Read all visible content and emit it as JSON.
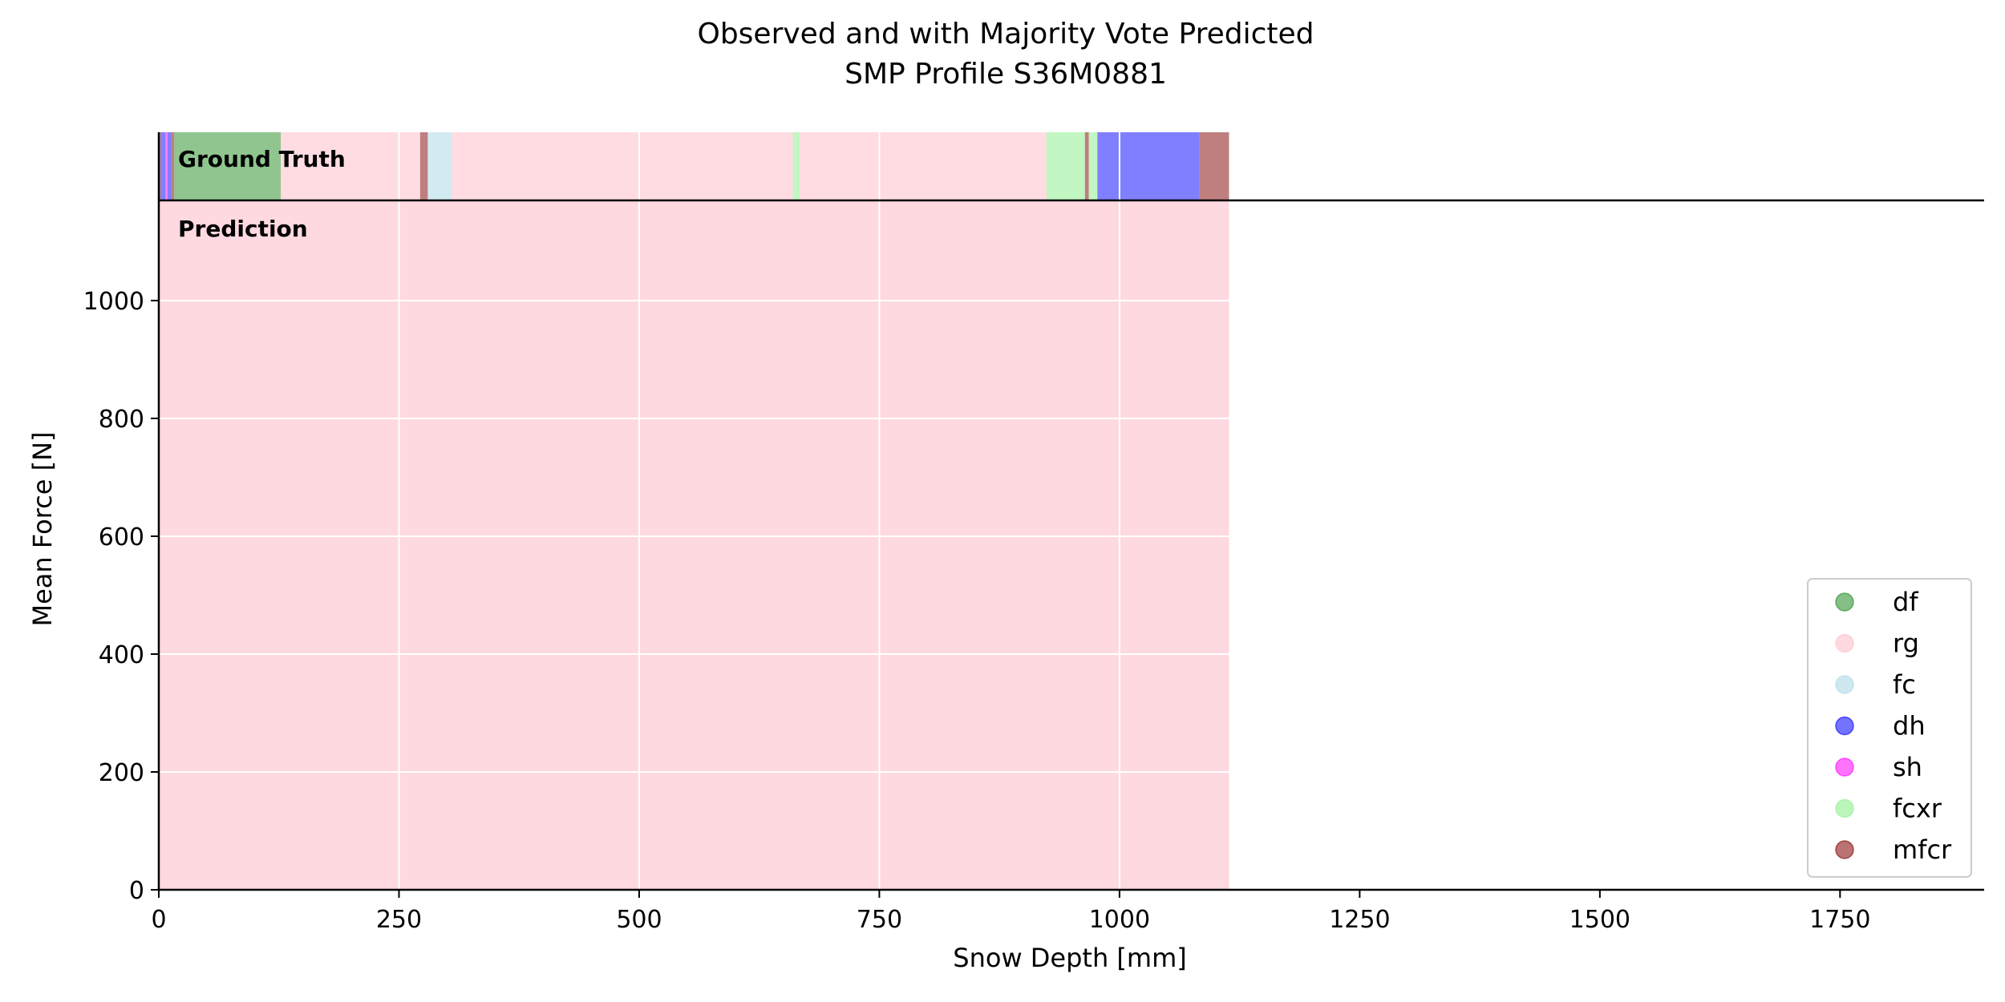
{
  "colors": {
    "df": "#228B22",
    "rg": "#FFC0CB",
    "fc": "#ADD8E6",
    "dh": "#0000FF",
    "sh": "#FF00FF",
    "fcxr": "#90EE90",
    "mfcr": "#800000",
    "grid": "#ffffff",
    "axis": "#000000"
  },
  "chart_data": {
    "type": "area",
    "title": "Observed and with Majority Vote Predicted\nSMP Profile S36M0881",
    "xlabel": "Snow Depth [mm]",
    "ylabel": "Mean Force [N]",
    "xlim": [
      0,
      1900
    ],
    "ylim": [
      0,
      1170
    ],
    "xticks": [
      0,
      250,
      500,
      750,
      1000,
      1250,
      1500,
      1750
    ],
    "yticks": [
      0,
      200,
      400,
      600,
      800,
      1000
    ],
    "grid": true,
    "legend": {
      "position": "lower right",
      "entries": [
        "df",
        "rg",
        "fc",
        "dh",
        "sh",
        "fcxr",
        "mfcr"
      ]
    },
    "panel_labels": {
      "ground_truth": "Ground Truth",
      "prediction": "Prediction"
    },
    "ground_truth": [
      {
        "label": "mfcr",
        "start": 0,
        "end": 2
      },
      {
        "label": "dh",
        "start": 2,
        "end": 7
      },
      {
        "label": "sh",
        "start": 7,
        "end": 9
      },
      {
        "label": "dh",
        "start": 9,
        "end": 13
      },
      {
        "label": "mfcr",
        "start": 13,
        "end": 16
      },
      {
        "label": "df",
        "start": 16,
        "end": 127
      },
      {
        "label": "rg",
        "start": 127,
        "end": 272
      },
      {
        "label": "mfcr",
        "start": 272,
        "end": 280
      },
      {
        "label": "fc",
        "start": 280,
        "end": 305
      },
      {
        "label": "rg",
        "start": 305,
        "end": 660
      },
      {
        "label": "fcxr",
        "start": 660,
        "end": 667
      },
      {
        "label": "rg",
        "start": 667,
        "end": 924
      },
      {
        "label": "fcxr",
        "start": 924,
        "end": 964
      },
      {
        "label": "mfcr",
        "start": 964,
        "end": 968
      },
      {
        "label": "fcxr",
        "start": 968,
        "end": 977
      },
      {
        "label": "dh",
        "start": 977,
        "end": 1083
      },
      {
        "label": "mfcr",
        "start": 1083,
        "end": 1114
      }
    ],
    "prediction": [
      {
        "label": "rg",
        "start": 0,
        "end": 1114
      }
    ]
  }
}
